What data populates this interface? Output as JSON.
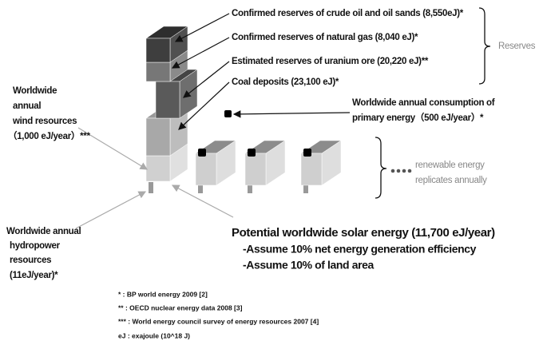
{
  "labels": {
    "oil": "Confirmed reserves of crude oil and oil sands (8,550eJ)*",
    "gas": "Confirmed reserves of natural gas (8,040 eJ)*",
    "uranium": "Estimated reserves of uranium ore (20,220 eJ)**",
    "coal": "Coal deposits (23,100 eJ)*",
    "reserves": "Reserves",
    "consumption": [
      "Worldwide annual consumption of",
      "primary energy（500 eJ/year）*"
    ],
    "wind": [
      "Worldwide",
      "annual",
      "wind resources",
      "（1,000 eJ/year）***"
    ],
    "hydropower": [
      "Worldwide annual",
      "hydropower",
      "resources",
      "(11eJ/year)*"
    ],
    "renewable": [
      "renewable energy",
      "replicates annually"
    ],
    "solar": {
      "title": "Potential worldwide solar energy (11,700 eJ/year)",
      "notes": [
        "-Assume 10% net energy generation efficiency",
        "-Assume 10% of land area"
      ]
    }
  },
  "footnotes": [
    "*     : BP world energy 2009 [2]",
    "**   : OECD nuclear energy data 2008 [3]",
    "*** : World energy council survey of energy resources 2007 [4]",
    "eJ   : exajoule (10^18 J)"
  ]
}
